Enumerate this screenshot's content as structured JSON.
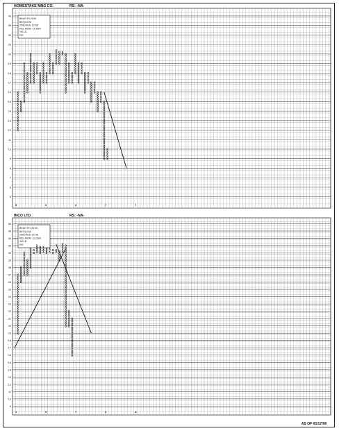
{
  "footer": {
    "as_of": "AS OF 03/17/98"
  },
  "colors": {
    "ink": "#111111",
    "grid": "#9a9a9a",
    "paper": "#ffffff"
  },
  "chart_data": [
    {
      "type": "point-and-figure",
      "title": "HOMESTAKE MNG CO.",
      "rs": "RS: -NA-",
      "info_lines": [
        "BEAR PO 9.50",
        "BETA 0.90",
        "200D AVG 12.88",
        "REL MOM -15.08%",
        "YIELD",
        "P/E"
      ],
      "y_tick_labels": [
        40,
        35,
        30,
        25,
        20,
        19,
        18,
        17,
        16,
        15,
        14,
        13,
        12,
        11,
        10,
        9,
        8,
        7,
        6,
        5
      ],
      "ylim": [
        5,
        40
      ],
      "columns": [
        {
          "x": 1,
          "type": "X",
          "low": 12,
          "high": 16
        },
        {
          "x": 2,
          "type": "O",
          "low": 14,
          "high": 15
        },
        {
          "x": 3,
          "type": "X",
          "low": 15,
          "high": 19
        },
        {
          "x": 4,
          "type": "O",
          "low": 16,
          "high": 18
        },
        {
          "x": 5,
          "type": "X",
          "low": 17,
          "high": 20
        },
        {
          "x": 6,
          "type": "O",
          "low": 17,
          "high": 19
        },
        {
          "x": 7,
          "type": "X",
          "low": 18,
          "high": 19
        },
        {
          "x": 8,
          "type": "O",
          "low": 16,
          "high": 18
        },
        {
          "x": 9,
          "type": "X",
          "low": 17,
          "high": 19
        },
        {
          "x": 10,
          "type": "O",
          "low": 17,
          "high": 18
        },
        {
          "x": 11,
          "type": "X",
          "low": 18,
          "high": 20
        },
        {
          "x": 12,
          "type": "O",
          "low": 18,
          "high": 19
        },
        {
          "x": 13,
          "type": "X",
          "low": 19,
          "high": 22
        },
        {
          "x": 14,
          "type": "O",
          "low": 19,
          "high": 21
        },
        {
          "x": 15,
          "type": "X",
          "low": 20,
          "high": 21
        },
        {
          "x": 16,
          "type": "O",
          "low": 16,
          "high": 20
        },
        {
          "x": 17,
          "type": "X",
          "low": 17,
          "high": 19
        },
        {
          "x": 18,
          "type": "O",
          "low": 17,
          "high": 18
        },
        {
          "x": 19,
          "type": "X",
          "low": 18,
          "high": 20
        },
        {
          "x": 20,
          "type": "O",
          "low": 17,
          "high": 19
        },
        {
          "x": 21,
          "type": "X",
          "low": 18,
          "high": 19
        },
        {
          "x": 22,
          "type": "O",
          "low": 16,
          "high": 18
        },
        {
          "x": 23,
          "type": "X",
          "low": 17,
          "high": 18
        },
        {
          "x": 24,
          "type": "O",
          "low": 15,
          "high": 17
        },
        {
          "x": 25,
          "type": "X",
          "low": 16,
          "high": 17
        },
        {
          "x": 26,
          "type": "O",
          "low": 14,
          "high": 16
        },
        {
          "x": 27,
          "type": "X",
          "low": 15,
          "high": 16
        },
        {
          "x": 28,
          "type": "O",
          "low": 9,
          "high": 15
        },
        {
          "x": 29,
          "type": "X",
          "low": 9,
          "high": 10
        }
      ],
      "trendline": [
        [
          28,
          16
        ],
        [
          35,
          8
        ]
      ],
      "x_markers": [
        "5",
        "3",
        "3",
        "7",
        "7"
      ]
    },
    {
      "type": "point-and-figure",
      "title": "INCO LTD.",
      "rs": "RS: -NA-",
      "info_lines": [
        "BEAR PO 25.00",
        "BETA 0.63",
        "200D AVG 22.48",
        "REL MOM -23.29%",
        "YIELD",
        "P/E"
      ],
      "y_tick_labels": [
        50,
        45,
        40,
        35,
        30,
        29,
        28,
        27,
        26,
        25,
        24,
        23,
        22,
        21,
        20,
        19,
        18,
        17,
        16,
        15,
        14,
        13,
        12,
        11,
        10,
        9
      ],
      "ylim": [
        9,
        50
      ],
      "columns": [
        {
          "x": 1,
          "type": "X",
          "low": 19,
          "high": 27
        },
        {
          "x": 2,
          "type": "O",
          "low": 26,
          "high": 28
        },
        {
          "x": 3,
          "type": "X",
          "low": 27,
          "high": 30
        },
        {
          "x": 4,
          "type": "O",
          "low": 27,
          "high": 29
        },
        {
          "x": 5,
          "type": "X",
          "low": 28,
          "high": 33
        },
        {
          "x": 6,
          "type": "O",
          "low": 30,
          "high": 32
        },
        {
          "x": 7,
          "type": "X",
          "low": 31,
          "high": 35
        },
        {
          "x": 8,
          "type": "O",
          "low": 30,
          "high": 34
        },
        {
          "x": 9,
          "type": "X",
          "low": 31,
          "high": 34
        },
        {
          "x": 10,
          "type": "O",
          "low": 30,
          "high": 33
        },
        {
          "x": 11,
          "type": "X",
          "low": 31,
          "high": 33
        },
        {
          "x": 12,
          "type": "O",
          "low": 30,
          "high": 32
        },
        {
          "x": 13,
          "type": "X",
          "low": 31,
          "high": 32
        },
        {
          "x": 14,
          "type": "O",
          "low": 29,
          "high": 31
        },
        {
          "x": 15,
          "type": "X",
          "low": 31,
          "high": 36
        },
        {
          "x": 16,
          "type": "O",
          "low": 20,
          "high": 35
        },
        {
          "x": 17,
          "type": "X",
          "low": 20,
          "high": 22
        },
        {
          "x": 18,
          "type": "O",
          "low": 16,
          "high": 21
        }
      ],
      "trendline_support": [
        [
          0,
          17
        ],
        [
          16,
          33
        ]
      ],
      "trendline_resistance": [
        [
          13,
          36
        ],
        [
          24,
          19
        ]
      ],
      "x_markers": [
        "1",
        "5",
        "7",
        "3",
        "A"
      ]
    }
  ]
}
